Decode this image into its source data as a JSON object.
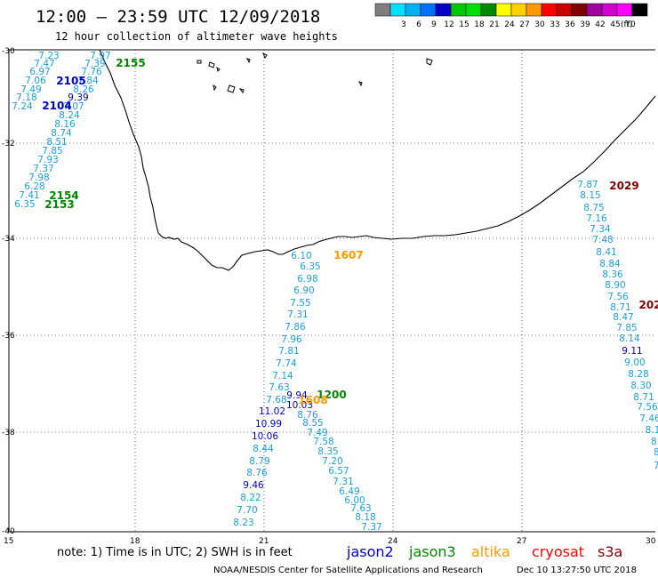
{
  "header": {
    "title": "12:00 – 23:59 UTC 12/09/2018",
    "subtitle": "12 hour collection of altimeter wave heights"
  },
  "color_scale": {
    "unit": "(ft)",
    "bins": [
      {
        "color": "#7f7f7f",
        "label": ""
      },
      {
        "color": "#00e0ff",
        "label": "3"
      },
      {
        "color": "#00b0f0",
        "label": "6"
      },
      {
        "color": "#0070ff",
        "label": "9"
      },
      {
        "color": "#0000c8",
        "label": "12"
      },
      {
        "color": "#00c800",
        "label": "15"
      },
      {
        "color": "#00e000",
        "label": "18"
      },
      {
        "color": "#008800",
        "label": "21"
      },
      {
        "color": "#ffff00",
        "label": "24"
      },
      {
        "color": "#ffd000",
        "label": "27"
      },
      {
        "color": "#ff9900",
        "label": "30"
      },
      {
        "color": "#ff0000",
        "label": "33"
      },
      {
        "color": "#c80000",
        "label": "36"
      },
      {
        "color": "#800000",
        "label": "39"
      },
      {
        "color": "#a000a0",
        "label": "42"
      },
      {
        "color": "#d000d0",
        "label": "45"
      },
      {
        "color": "#ff00ff",
        "label": "70"
      },
      {
        "color": "#000000",
        "label": ""
      }
    ]
  },
  "axes": {
    "lat_labels": [
      "-30",
      "-32",
      "-34",
      "-36",
      "-38",
      "-40"
    ],
    "lon_labels": [
      "15",
      "18",
      "21",
      "24",
      "27",
      "30"
    ]
  },
  "colors": {
    "jason2": "#0000c8",
    "jason3": "#008800",
    "altika": "#ff9900",
    "cryosat": "#cc0000",
    "s3a": "#800000",
    "light": "#1a9fe0"
  },
  "tracks": {
    "west": [
      "7.23",
      "7.97",
      "7.47",
      "7.39",
      "6.97",
      "7.76",
      "7.06",
      "7.84",
      "7.49",
      "8.26",
      "7.18",
      "9.39",
      "7.24",
      "7.07",
      "8.24",
      "8.16",
      "8.74",
      "8.51",
      "7.85",
      "7.93",
      "7.37",
      "7.98",
      "6.28",
      "7.41",
      "6.35"
    ],
    "west_dark": [
      "9.39"
    ],
    "center_upper": [
      "6.10",
      "6.35",
      "6.98",
      "6.90",
      "7.55",
      "7.31",
      "7.86",
      "7.96",
      "7.81",
      "7.74",
      "7.14",
      "7.63",
      "7.68"
    ],
    "center_right": [
      "8.76",
      "8.55",
      "7.49",
      "7.58",
      "8.35",
      "7.20",
      "6.57",
      "7.31",
      "6.49",
      "6.00",
      "7.63",
      "8.18",
      "7.37"
    ],
    "center_dark": [
      "9.94",
      "10.03",
      "11.02",
      "10.99",
      "10.06"
    ],
    "center_lower": [
      "8.44",
      "8.79",
      "8.76",
      "9.46",
      "8.22",
      "7.70",
      "8.23"
    ],
    "east": [
      "7.87",
      "8.15",
      "8.75",
      "7.16",
      "7.34",
      "7.48",
      "8.41",
      "8.84",
      "8.36",
      "8.90",
      "7.56",
      "8.71",
      "8.47",
      "7.85",
      "8.14",
      "9.11",
      "9.00",
      "8.28",
      "8.30",
      "8.71",
      "7.56",
      "7.46",
      "8.1",
      "8.",
      "8.",
      "7."
    ]
  },
  "pass_labels": [
    {
      "text": "2155",
      "sat": "jason3"
    },
    {
      "text": "2105",
      "sat": "jason2"
    },
    {
      "text": "2104",
      "sat": "jason2"
    },
    {
      "text": "2154",
      "sat": "jason3"
    },
    {
      "text": "2153",
      "sat": "jason3"
    },
    {
      "text": "2029",
      "sat": "s3a"
    },
    {
      "text": "202",
      "sat": "s3a"
    },
    {
      "text": "1607",
      "sat": "altika"
    },
    {
      "text": "1200",
      "sat": "jason3"
    },
    {
      "text": "1608",
      "sat": "altika"
    }
  ],
  "note": "note:  1) Time is in UTC;  2) SWH is in feet",
  "legend": [
    {
      "name": "jason2",
      "color": "#0000c8"
    },
    {
      "name": "jason3",
      "color": "#008800"
    },
    {
      "name": "altika",
      "color": "#ff9900"
    },
    {
      "name": "cryosat",
      "color": "#ff0000"
    },
    {
      "name": "s3a",
      "color": "#800000"
    }
  ],
  "footer": {
    "credit": "NOAA/NESDIS Center for Satellite Applications and Research",
    "timestamp": "Dec 10 13:27:50 UTC 2018"
  }
}
